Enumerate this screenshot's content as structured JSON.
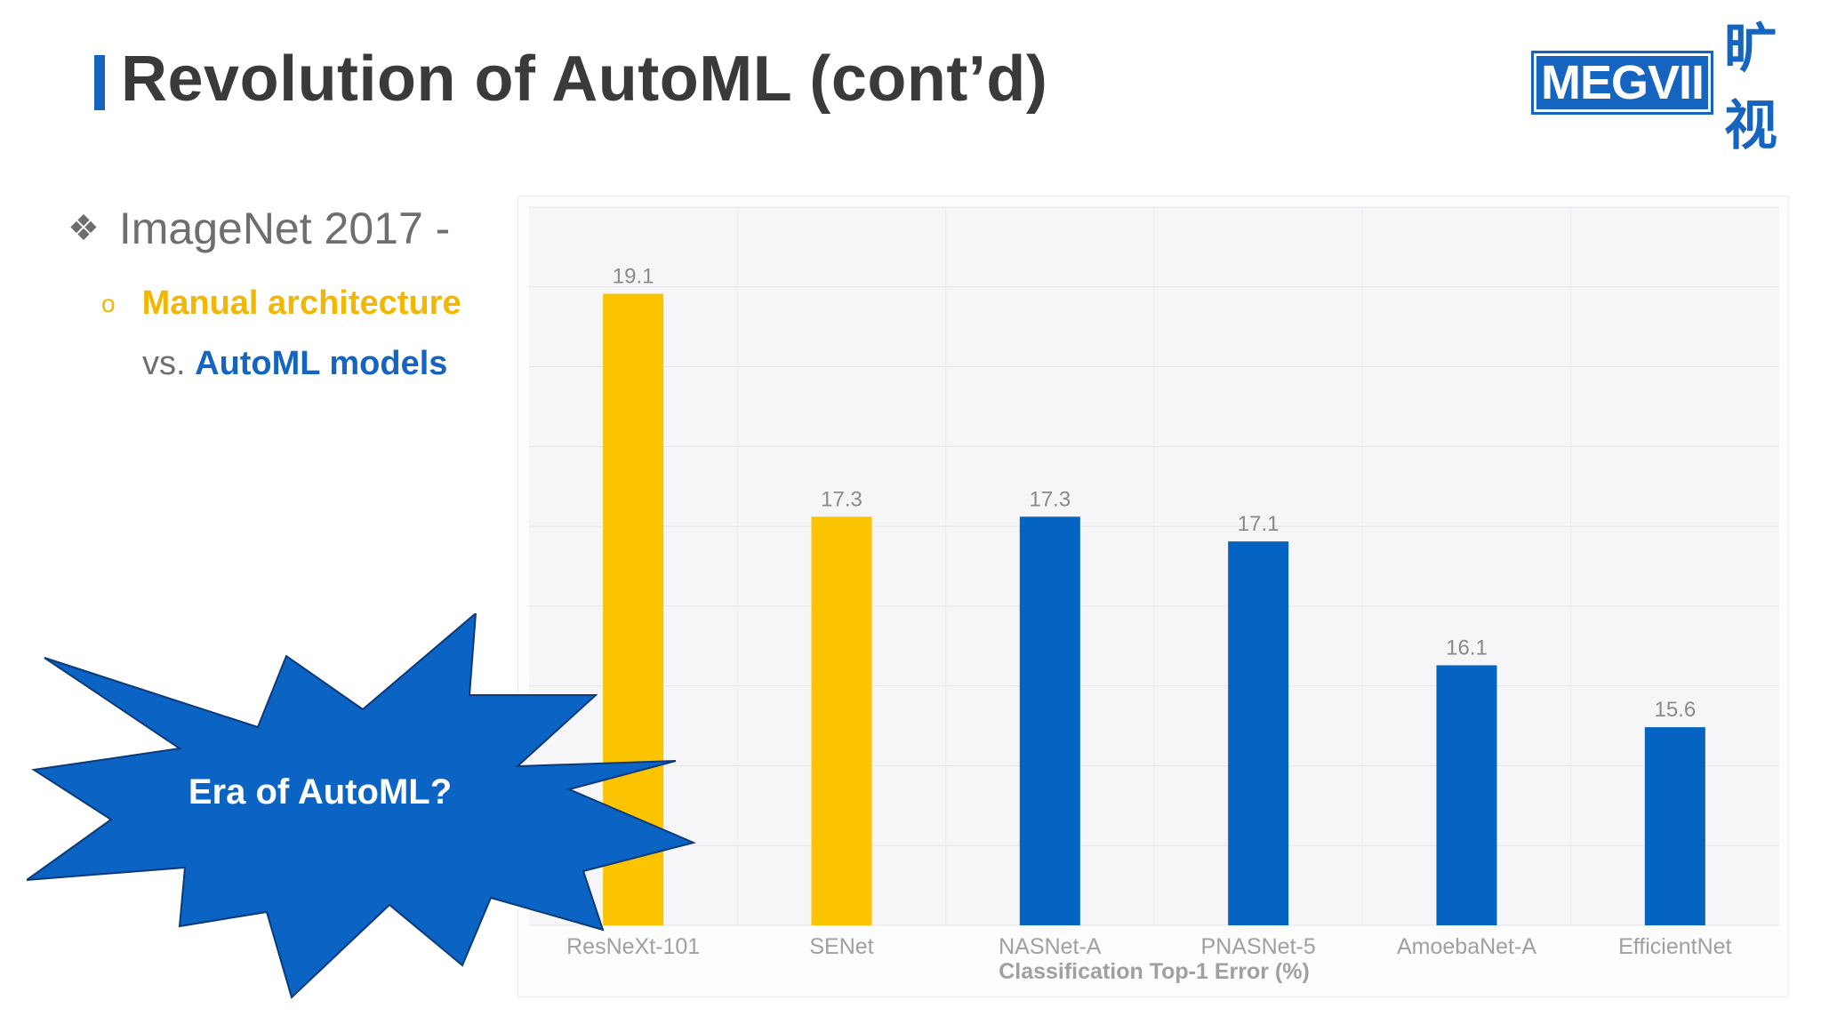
{
  "slide": {
    "title": "Revolution of AutoML (cont’d)",
    "logo_text": "MEGVII",
    "logo_cn": "旷视",
    "bullets": {
      "level1_marker": "❖",
      "level1": "ImageNet 2017 -",
      "level2_marker": "o",
      "level2": "Manual architecture",
      "level3_prefix": "vs.",
      "level3_highlight": "AutoML models"
    },
    "callout": "Era of AutoML?"
  },
  "colors": {
    "manual": "#fbc300",
    "automl": "#0563c1",
    "title_accent": "#1565c0",
    "callout_fill": "#0b63c4"
  },
  "chart_data": {
    "type": "bar",
    "title": "",
    "xlabel": "Classification Top-1 Error (%)",
    "ylabel": "",
    "categories": [
      "ResNeXt-101",
      "SENet",
      "NASNet-A",
      "PNASNet-5",
      "AmoebaNet-A",
      "EfficientNet"
    ],
    "values": [
      19.1,
      17.3,
      17.3,
      17.1,
      16.1,
      15.6
    ],
    "bar_groups": [
      "manual",
      "manual",
      "automl",
      "automl",
      "automl",
      "automl"
    ],
    "ylim": [
      14.0,
      19.8
    ],
    "grid": true,
    "data_labels": true
  }
}
